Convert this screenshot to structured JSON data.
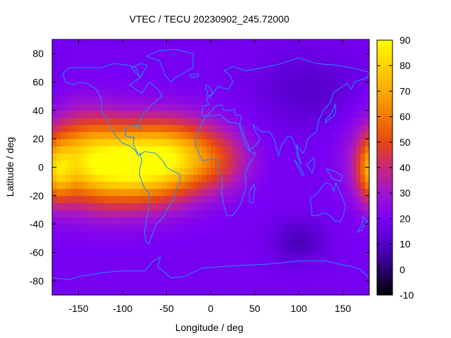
{
  "chart_data": {
    "type": "heatmap",
    "title": "VTEC / TECU 20230902_245.72000",
    "xlabel": "Longitude / deg",
    "ylabel": "Latitude / deg",
    "xlim": [
      -180,
      180
    ],
    "ylim": [
      -90,
      90
    ],
    "xticks": [
      -150,
      -100,
      -50,
      0,
      50,
      100,
      150
    ],
    "yticks": [
      -80,
      -60,
      -40,
      -20,
      0,
      20,
      40,
      60,
      80
    ],
    "colorbar": {
      "range": [
        -10,
        90
      ],
      "ticks": [
        -10,
        0,
        10,
        20,
        30,
        40,
        50,
        60,
        70,
        80,
        90
      ],
      "palette": [
        "#000000",
        "#2a0070",
        "#5200c8",
        "#7a00f5",
        "#a014d2",
        "#c82878",
        "#e64614",
        "#f27800",
        "#faaa00",
        "#ffd200",
        "#ffff00"
      ]
    },
    "grid": false,
    "coastline_color": "#1e8cff",
    "field": {
      "description_values": "VTEC field in TECU sampled on a 5 deg grid",
      "background": 19,
      "peaks": [
        {
          "lon": -95,
          "lat": 2,
          "sigma_lon": 45,
          "sigma_lat": 20,
          "amplitude": 66
        },
        {
          "lon": -150,
          "lat": 8,
          "sigma_lon": 30,
          "sigma_lat": 22,
          "amplitude": 30
        },
        {
          "lon": -35,
          "lat": 8,
          "sigma_lon": 35,
          "sigma_lat": 18,
          "amplitude": 38
        },
        {
          "lon": 15,
          "lat": 5,
          "sigma_lon": 25,
          "sigma_lat": 15,
          "amplitude": 14
        },
        {
          "lon": 185,
          "lat": -3,
          "sigma_lon": 12,
          "sigma_lat": 15,
          "amplitude": 32
        },
        {
          "lon": 100,
          "lat": -52,
          "sigma_lon": 20,
          "sigma_lat": 10,
          "amplitude": -11
        },
        {
          "lon": 110,
          "lat": 55,
          "sigma_lon": 40,
          "sigma_lat": 18,
          "amplitude": -8
        }
      ]
    },
    "coastlines": [
      {
        "name": "North America",
        "points": [
          [
            -168,
            66
          ],
          [
            -160,
            70
          ],
          [
            -140,
            70
          ],
          [
            -125,
            70
          ],
          [
            -110,
            73
          ],
          [
            -95,
            72
          ],
          [
            -85,
            70
          ],
          [
            -80,
            63
          ],
          [
            -92,
            58
          ],
          [
            -85,
            55
          ],
          [
            -78,
            52
          ],
          [
            -70,
            60
          ],
          [
            -60,
            55
          ],
          [
            -55,
            50
          ],
          [
            -65,
            45
          ],
          [
            -70,
            42
          ],
          [
            -76,
            38
          ],
          [
            -81,
            32
          ],
          [
            -80,
            26
          ],
          [
            -83,
            30
          ],
          [
            -90,
            29
          ],
          [
            -97,
            27
          ],
          [
            -97,
            22
          ],
          [
            -90,
            21
          ],
          [
            -87,
            21
          ],
          [
            -88,
            16
          ],
          [
            -83,
            10
          ],
          [
            -79,
            9
          ],
          [
            -82,
            8
          ],
          [
            -86,
            12
          ],
          [
            -92,
            15
          ],
          [
            -100,
            17
          ],
          [
            -105,
            20
          ],
          [
            -110,
            24
          ],
          [
            -115,
            30
          ],
          [
            -118,
            34
          ],
          [
            -124,
            40
          ],
          [
            -124,
            48
          ],
          [
            -130,
            55
          ],
          [
            -140,
            59
          ],
          [
            -150,
            60
          ],
          [
            -155,
            58
          ],
          [
            -165,
            60
          ],
          [
            -168,
            66
          ]
        ]
      },
      {
        "name": "South America",
        "points": [
          [
            -80,
            9
          ],
          [
            -75,
            11
          ],
          [
            -63,
            10
          ],
          [
            -55,
            5
          ],
          [
            -50,
            0
          ],
          [
            -45,
            -2
          ],
          [
            -35,
            -5
          ],
          [
            -35,
            -10
          ],
          [
            -39,
            -15
          ],
          [
            -41,
            -22
          ],
          [
            -48,
            -28
          ],
          [
            -53,
            -34
          ],
          [
            -58,
            -38
          ],
          [
            -62,
            -40
          ],
          [
            -65,
            -45
          ],
          [
            -68,
            -50
          ],
          [
            -70,
            -54
          ],
          [
            -74,
            -52
          ],
          [
            -75,
            -45
          ],
          [
            -73,
            -37
          ],
          [
            -71,
            -30
          ],
          [
            -70,
            -18
          ],
          [
            -76,
            -14
          ],
          [
            -81,
            -5
          ],
          [
            -80,
            0
          ],
          [
            -78,
            5
          ],
          [
            -80,
            9
          ]
        ]
      },
      {
        "name": "Greenland",
        "points": [
          [
            -73,
            78
          ],
          [
            -60,
            82
          ],
          [
            -40,
            83
          ],
          [
            -20,
            80
          ],
          [
            -20,
            70
          ],
          [
            -40,
            63
          ],
          [
            -45,
            60
          ],
          [
            -52,
            65
          ],
          [
            -58,
            75
          ],
          [
            -73,
            78
          ]
        ]
      },
      {
        "name": "Europe-Asia",
        "points": [
          [
            -10,
            36
          ],
          [
            -9,
            43
          ],
          [
            -2,
            44
          ],
          [
            -5,
            48
          ],
          [
            0,
            50
          ],
          [
            5,
            54
          ],
          [
            8,
            57
          ],
          [
            12,
            56
          ],
          [
            20,
            55
          ],
          [
            25,
            60
          ],
          [
            22,
            65
          ],
          [
            15,
            68
          ],
          [
            25,
            71
          ],
          [
            40,
            68
          ],
          [
            60,
            70
          ],
          [
            80,
            73
          ],
          [
            100,
            77
          ],
          [
            120,
            73
          ],
          [
            140,
            72
          ],
          [
            160,
            70
          ],
          [
            180,
            67
          ],
          [
            178,
            63
          ],
          [
            163,
            60
          ],
          [
            160,
            55
          ],
          [
            155,
            59
          ],
          [
            140,
            53
          ],
          [
            135,
            45
          ],
          [
            128,
            40
          ],
          [
            122,
            32
          ],
          [
            120,
            25
          ],
          [
            110,
            20
          ],
          [
            108,
            14
          ],
          [
            105,
            10
          ],
          [
            100,
            13
          ],
          [
            98,
            16
          ],
          [
            98,
            8
          ],
          [
            103,
            2
          ],
          [
            97,
            14
          ],
          [
            92,
            21
          ],
          [
            88,
            22
          ],
          [
            80,
            15
          ],
          [
            77,
            8
          ],
          [
            72,
            20
          ],
          [
            67,
            25
          ],
          [
            58,
            25
          ],
          [
            55,
            26
          ],
          [
            48,
            30
          ],
          [
            50,
            26
          ],
          [
            56,
            20
          ],
          [
            52,
            16
          ],
          [
            44,
            12
          ],
          [
            43,
            15
          ],
          [
            38,
            22
          ],
          [
            35,
            28
          ],
          [
            33,
            31
          ],
          [
            35,
            36
          ],
          [
            28,
            37
          ],
          [
            27,
            41
          ],
          [
            22,
            40
          ],
          [
            15,
            40
          ],
          [
            12,
            44
          ],
          [
            5,
            43
          ],
          [
            0,
            39
          ],
          [
            -5,
            36
          ],
          [
            -10,
            36
          ]
        ]
      },
      {
        "name": "Africa",
        "points": [
          [
            -17,
            21
          ],
          [
            -17,
            15
          ],
          [
            -10,
            5
          ],
          [
            -5,
            5
          ],
          [
            5,
            6
          ],
          [
            9,
            4
          ],
          [
            9,
            -2
          ],
          [
            12,
            -6
          ],
          [
            13,
            -12
          ],
          [
            12,
            -17
          ],
          [
            15,
            -27
          ],
          [
            18,
            -34
          ],
          [
            25,
            -34
          ],
          [
            32,
            -28
          ],
          [
            35,
            -24
          ],
          [
            40,
            -15
          ],
          [
            40,
            -10
          ],
          [
            39,
            -5
          ],
          [
            42,
            0
          ],
          [
            51,
            10
          ],
          [
            45,
            11
          ],
          [
            43,
            12
          ],
          [
            38,
            18
          ],
          [
            32,
            30
          ],
          [
            30,
            31
          ],
          [
            20,
            32
          ],
          [
            10,
            37
          ],
          [
            0,
            36
          ],
          [
            -6,
            36
          ],
          [
            -10,
            30
          ],
          [
            -17,
            21
          ]
        ]
      },
      {
        "name": "Australia",
        "points": [
          [
            113,
            -22
          ],
          [
            115,
            -34
          ],
          [
            120,
            -34
          ],
          [
            130,
            -32
          ],
          [
            137,
            -35
          ],
          [
            141,
            -38
          ],
          [
            147,
            -38
          ],
          [
            150,
            -35
          ],
          [
            153,
            -28
          ],
          [
            150,
            -22
          ],
          [
            145,
            -15
          ],
          [
            142,
            -11
          ],
          [
            140,
            -17
          ],
          [
            136,
            -12
          ],
          [
            130,
            -11
          ],
          [
            126,
            -14
          ],
          [
            122,
            -18
          ],
          [
            113,
            -22
          ]
        ]
      },
      {
        "name": "Antarctica",
        "points": [
          [
            -180,
            -78
          ],
          [
            -160,
            -79
          ],
          [
            -150,
            -77
          ],
          [
            -120,
            -74
          ],
          [
            -100,
            -73
          ],
          [
            -75,
            -73
          ],
          [
            -65,
            -66
          ],
          [
            -57,
            -63
          ],
          [
            -60,
            -70
          ],
          [
            -45,
            -78
          ],
          [
            -30,
            -77
          ],
          [
            -10,
            -71
          ],
          [
            10,
            -70
          ],
          [
            40,
            -69
          ],
          [
            70,
            -68
          ],
          [
            100,
            -66
          ],
          [
            130,
            -66
          ],
          [
            160,
            -70
          ],
          [
            170,
            -72
          ],
          [
            180,
            -78
          ]
        ]
      },
      {
        "name": "Madagascar",
        "points": [
          [
            44,
            -25
          ],
          [
            48,
            -25
          ],
          [
            50,
            -15
          ],
          [
            49,
            -12
          ],
          [
            44,
            -17
          ],
          [
            44,
            -25
          ]
        ]
      },
      {
        "name": "Great Britain",
        "points": [
          [
            -5,
            50
          ],
          [
            1,
            51
          ],
          [
            2,
            53
          ],
          [
            -2,
            57
          ],
          [
            -5,
            58
          ],
          [
            -6,
            55
          ],
          [
            -3,
            54
          ],
          [
            -5,
            50
          ]
        ]
      },
      {
        "name": "Japan",
        "points": [
          [
            130,
            31
          ],
          [
            135,
            34
          ],
          [
            140,
            36
          ],
          [
            142,
            40
          ],
          [
            141,
            45
          ],
          [
            140,
            42
          ],
          [
            136,
            37
          ],
          [
            131,
            34
          ],
          [
            130,
            31
          ]
        ]
      },
      {
        "name": "New Zealand",
        "points": [
          [
            166,
            -46
          ],
          [
            172,
            -44
          ],
          [
            174,
            -41
          ],
          [
            178,
            -38
          ],
          [
            173,
            -35
          ],
          [
            172,
            -40
          ],
          [
            166,
            -46
          ]
        ]
      },
      {
        "name": "Borneo",
        "points": [
          [
            109,
            2
          ],
          [
            115,
            -4
          ],
          [
            118,
            1
          ],
          [
            117,
            7
          ],
          [
            113,
            4
          ],
          [
            109,
            2
          ]
        ]
      },
      {
        "name": "Sumatra",
        "points": [
          [
            95,
            5
          ],
          [
            104,
            -6
          ],
          [
            106,
            -5
          ],
          [
            100,
            2
          ],
          [
            95,
            5
          ]
        ]
      },
      {
        "name": "Papua",
        "points": [
          [
            131,
            -1
          ],
          [
            141,
            -3
          ],
          [
            150,
            -6
          ],
          [
            147,
            -10
          ],
          [
            138,
            -8
          ],
          [
            131,
            -1
          ]
        ]
      },
      {
        "name": "Iceland",
        "points": [
          [
            -24,
            65
          ],
          [
            -14,
            66
          ],
          [
            -14,
            64
          ],
          [
            -22,
            63
          ],
          [
            -24,
            65
          ]
        ]
      },
      {
        "name": "Baffin",
        "points": [
          [
            -80,
            63
          ],
          [
            -72,
            72
          ],
          [
            -80,
            73
          ],
          [
            -90,
            70
          ],
          [
            -80,
            63
          ]
        ]
      }
    ]
  }
}
